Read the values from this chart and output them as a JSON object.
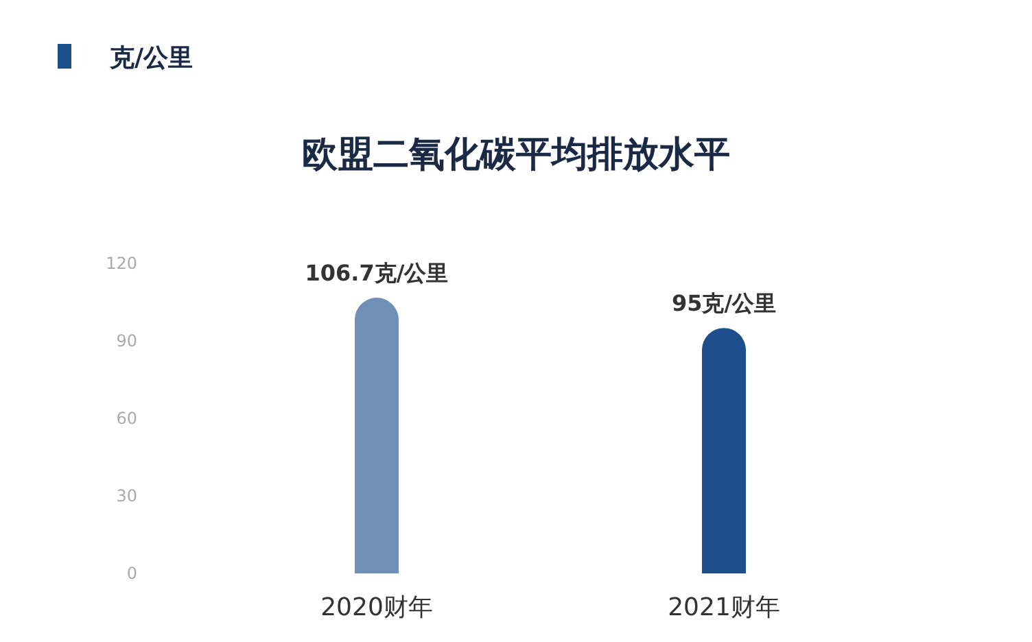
{
  "chart_data": {
    "type": "bar",
    "title": "欧盟二氧化碳平均排放水平",
    "annotations": [
      "克/公里"
    ],
    "categories": [
      "2020财年",
      "2021财年"
    ],
    "values": [
      106.7,
      95
    ],
    "colors": [
      "#7090b8",
      "#1f4e8c"
    ],
    "value_labels": [
      "106.7克/公里",
      "95克/公里"
    ],
    "ylim": [
      0,
      120
    ],
    "yticks": [
      0,
      30,
      60,
      90,
      120
    ],
    "grid": false
  }
}
